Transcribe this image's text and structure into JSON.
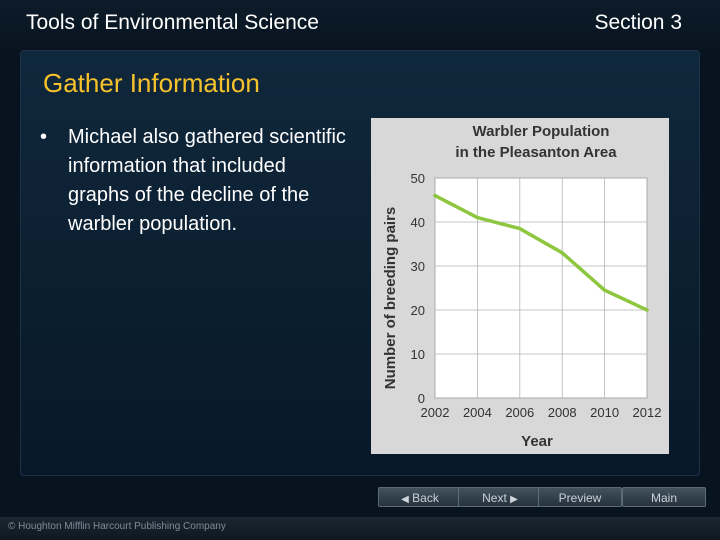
{
  "header": {
    "title": "Tools of Environmental Science",
    "section": "Section 3"
  },
  "slide": {
    "heading": "Gather Information",
    "bullet_marker": "•",
    "bullet": "Michael also gathered scientific information that included graphs of the decline of the warbler population."
  },
  "chart_data": {
    "type": "line",
    "title": "Warbler Population in the Pleasanton Area",
    "title_lines": [
      "Warbler Population",
      "in the Pleasanton Area"
    ],
    "xlabel": "Year",
    "ylabel": "Number of breeding pairs",
    "x": [
      2002,
      2004,
      2006,
      2008,
      2010,
      2012
    ],
    "y": [
      46,
      41,
      38.5,
      33,
      24.5,
      20
    ],
    "xticks": [
      "2002",
      "2004",
      "2006",
      "2008",
      "2010",
      "2012"
    ],
    "yticks": [
      "0",
      "10",
      "20",
      "30",
      "40",
      "50"
    ],
    "xlim": [
      2002,
      2012
    ],
    "ylim": [
      0,
      50
    ],
    "grid": true,
    "line_color": "#8dc63f",
    "background_color": "#d8d8d8"
  },
  "nav": {
    "back_label": "Back",
    "next_label": "Next",
    "preview_label": "Preview",
    "main_label": "Main"
  },
  "footer": {
    "copyright": "© Houghton Mifflin Harcourt Publishing Company"
  },
  "colors": {
    "heading": "#f6c22c",
    "background": "#07131f"
  }
}
